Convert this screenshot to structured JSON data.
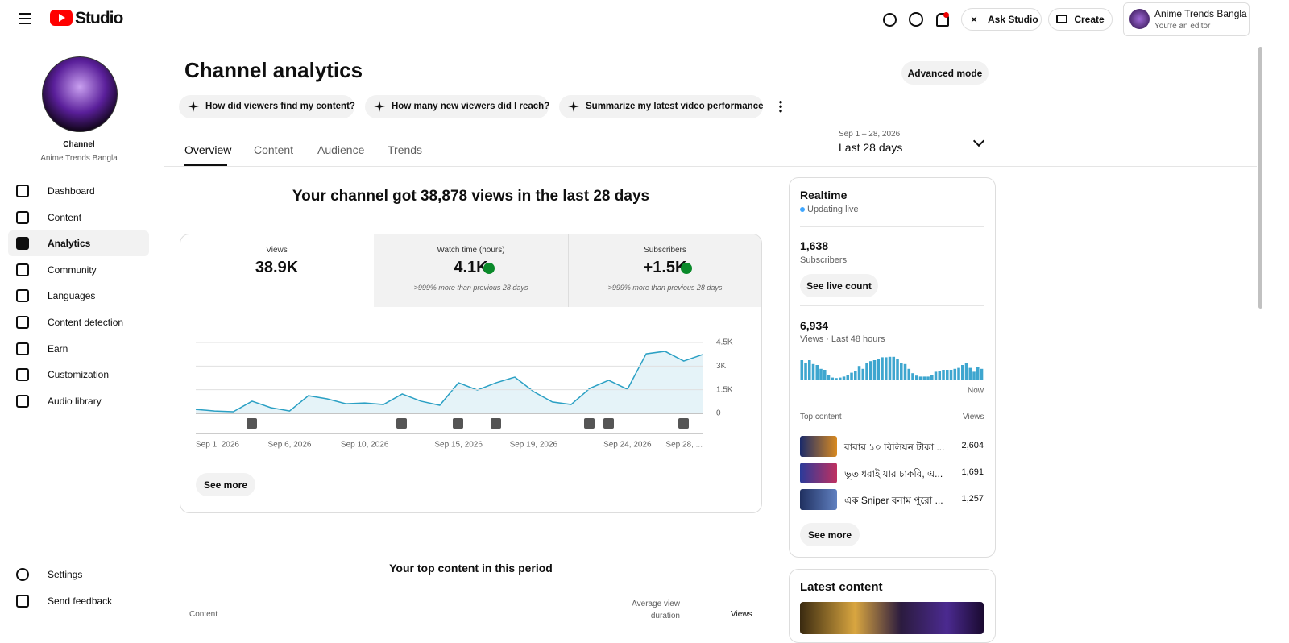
{
  "header": {
    "studio": "Studio",
    "ask_studio": "Ask Studio",
    "create": "Create",
    "account_name": "Anime Trends Bangla",
    "account_role": "You're an editor"
  },
  "sidebar": {
    "channel_label": "Channel",
    "channel_name": "Anime Trends Bangla",
    "nav": [
      "Dashboard",
      "Content",
      "Analytics",
      "Community",
      "Languages",
      "Content detection",
      "Earn",
      "Customization",
      "Audio library"
    ],
    "settings": "Settings",
    "feedback": "Send feedback"
  },
  "main": {
    "title": "Channel analytics",
    "advanced": "Advanced mode",
    "prompts": [
      "How did viewers find my content?",
      "How many new viewers did I reach?",
      "Summarize my latest video performance"
    ],
    "tabs": [
      "Overview",
      "Content",
      "Audience",
      "Trends"
    ],
    "date_range": "Sep 1 – 28, 2026",
    "period": "Last 28 days",
    "headline": "Your channel got 38,878 views in the last 28 days",
    "metrics": [
      {
        "label": "Views",
        "value": "38.9K"
      },
      {
        "label": "Watch time (hours)",
        "value": "4.1K",
        "note": ">999% more than previous 28 days"
      },
      {
        "label": "Subscribers",
        "value": "+1.5K",
        "note": ">999% more than previous 28 days"
      }
    ],
    "see_more": "See more",
    "top_content_title": "Your top content in this period",
    "table_headers": [
      "Content",
      "Average view duration",
      "Views"
    ]
  },
  "realtime": {
    "title": "Realtime",
    "status": "Updating live",
    "subscribers_count": "1,638",
    "subscribers_label": "Subscribers",
    "see_live": "See live count",
    "views_count": "6,934",
    "views_label": "Views · Last 48 hours",
    "top_content": "Top content",
    "views_col": "Views",
    "items": [
      {
        "title": "বাবার ১০ বিলিয়ন টাকা ...",
        "views": "2,604"
      },
      {
        "title": "ভূত ধরাই যার চাকরি, এ...",
        "views": "1,691"
      },
      {
        "title": "এক Sniper বনাম পুরো ...",
        "views": "1,257"
      }
    ],
    "see_more": "See more"
  },
  "latest": {
    "title": "Latest content"
  },
  "chart_data": [
    {
      "type": "line",
      "categories": [
        "Sep 1, 2026",
        null,
        null,
        null,
        null,
        "Sep 6, 2026",
        null,
        null,
        null,
        "Sep 10, 2026",
        null,
        null,
        null,
        null,
        "Sep 15, 2026",
        null,
        null,
        null,
        "Sep 19, 2026",
        null,
        null,
        null,
        null,
        "Sep 24, 2026",
        null,
        null,
        null,
        "Sep 28, ..."
      ],
      "values": [
        250,
        150,
        100,
        770,
        360,
        150,
        1120,
        920,
        610,
        660,
        560,
        1230,
        770,
        510,
        1940,
        1480,
        1940,
        2300,
        1380,
        720,
        560,
        1590,
        2100,
        1530,
        3780,
        3940,
        3320,
        3730
      ],
      "color": "#2ba0c4",
      "ylim": [
        0,
        4500
      ],
      "yticks": [
        0,
        {
          "value": 1500,
          "label": "1.5K"
        },
        {
          "value": 3000,
          "label": "3K"
        },
        {
          "value": 4500,
          "label": "4.5K"
        }
      ],
      "grid": true
    },
    {
      "type": "bar",
      "categories": [
        null,
        null,
        null,
        null,
        null,
        null,
        null,
        null,
        null,
        null,
        null,
        null,
        null,
        null,
        null,
        null,
        null,
        null,
        null,
        null,
        null,
        null,
        null,
        null,
        null,
        null,
        null,
        null,
        null,
        null,
        null,
        null,
        null,
        null,
        null,
        null,
        null,
        null,
        null,
        null,
        null,
        null,
        null,
        null,
        null,
        null,
        null,
        "Now"
      ],
      "values": [
        200,
        170,
        200,
        160,
        150,
        110,
        100,
        50,
        20,
        15,
        20,
        30,
        50,
        70,
        90,
        140,
        110,
        170,
        190,
        200,
        210,
        230,
        230,
        235,
        235,
        210,
        175,
        160,
        110,
        65,
        40,
        30,
        30,
        30,
        50,
        80,
        90,
        100,
        100,
        100,
        110,
        120,
        150,
        170,
        120,
        80,
        130,
        110
      ],
      "color": "#3ea6cf",
      "ylim": [
        0,
        250
      ]
    }
  ]
}
